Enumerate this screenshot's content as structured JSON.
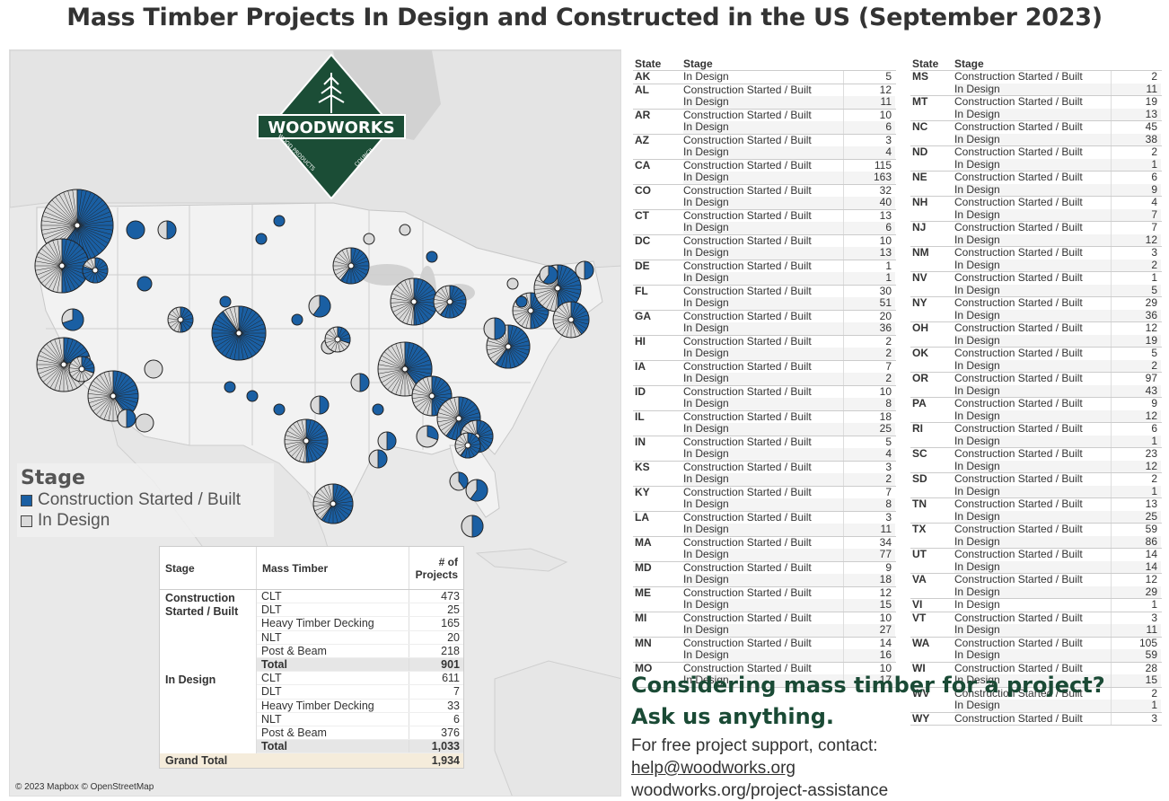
{
  "title": "Mass Timber Projects In Design and Constructed in the US (September 2023)",
  "colors": {
    "built": "#1a5fa3",
    "design": "#d9d9d9",
    "brand_green": "#1b4d36"
  },
  "logo": {
    "name": "WOODWORKS",
    "sub_left": "WOOD PRODUCTS",
    "sub_right": "COUNCIL"
  },
  "legend": {
    "title": "Stage",
    "items": [
      {
        "label": "Construction Started / Built",
        "color": "#1a5fa3"
      },
      {
        "label": "In Design",
        "color": "#d9d9d9"
      }
    ]
  },
  "attribution": "© 2023 Mapbox © OpenStreetMap",
  "summary": {
    "headers": {
      "stage": "Stage",
      "mass_timber": "Mass Timber",
      "count": "# of Projects"
    },
    "groups": [
      {
        "stage": "Construction Started / Built",
        "rows": [
          {
            "name": "CLT",
            "value": "473"
          },
          {
            "name": "DLT",
            "value": "25"
          },
          {
            "name": "Heavy Timber Decking",
            "value": "165"
          },
          {
            "name": "NLT",
            "value": "20"
          },
          {
            "name": "Post & Beam",
            "value": "218"
          },
          {
            "name": "Total",
            "value": "901",
            "total": true
          }
        ]
      },
      {
        "stage": "In Design",
        "rows": [
          {
            "name": "CLT",
            "value": "611"
          },
          {
            "name": "DLT",
            "value": "7"
          },
          {
            "name": "Heavy Timber Decking",
            "value": "33"
          },
          {
            "name": "NLT",
            "value": "6"
          },
          {
            "name": "Post & Beam",
            "value": "376"
          },
          {
            "name": "Total",
            "value": "1,033",
            "total": true
          }
        ]
      }
    ],
    "grand_total_label": "Grand Total",
    "grand_total_value": "1,934"
  },
  "state_table": {
    "headers": {
      "state": "State",
      "stage": "Stage"
    },
    "left": [
      {
        "state": "AK",
        "rows": [
          [
            "In Design",
            "5"
          ]
        ]
      },
      {
        "state": "AL",
        "rows": [
          [
            "Construction Started / Built",
            "12"
          ],
          [
            "In Design",
            "11"
          ]
        ]
      },
      {
        "state": "AR",
        "rows": [
          [
            "Construction Started / Built",
            "10"
          ],
          [
            "In Design",
            "6"
          ]
        ]
      },
      {
        "state": "AZ",
        "rows": [
          [
            "Construction Started / Built",
            "3"
          ],
          [
            "In Design",
            "4"
          ]
        ]
      },
      {
        "state": "CA",
        "rows": [
          [
            "Construction Started / Built",
            "115"
          ],
          [
            "In Design",
            "163"
          ]
        ]
      },
      {
        "state": "CO",
        "rows": [
          [
            "Construction Started / Built",
            "32"
          ],
          [
            "In Design",
            "40"
          ]
        ]
      },
      {
        "state": "CT",
        "rows": [
          [
            "Construction Started / Built",
            "13"
          ],
          [
            "In Design",
            "6"
          ]
        ]
      },
      {
        "state": "DC",
        "rows": [
          [
            "Construction Started / Built",
            "10"
          ],
          [
            "In Design",
            "13"
          ]
        ]
      },
      {
        "state": "DE",
        "rows": [
          [
            "Construction Started / Built",
            "1"
          ],
          [
            "In Design",
            "1"
          ]
        ]
      },
      {
        "state": "FL",
        "rows": [
          [
            "Construction Started / Built",
            "30"
          ],
          [
            "In Design",
            "51"
          ]
        ]
      },
      {
        "state": "GA",
        "rows": [
          [
            "Construction Started / Built",
            "20"
          ],
          [
            "In Design",
            "36"
          ]
        ]
      },
      {
        "state": "HI",
        "rows": [
          [
            "Construction Started / Built",
            "2"
          ],
          [
            "In Design",
            "2"
          ]
        ]
      },
      {
        "state": "IA",
        "rows": [
          [
            "Construction Started / Built",
            "7"
          ],
          [
            "In Design",
            "2"
          ]
        ]
      },
      {
        "state": "ID",
        "rows": [
          [
            "Construction Started / Built",
            "10"
          ],
          [
            "In Design",
            "8"
          ]
        ]
      },
      {
        "state": "IL",
        "rows": [
          [
            "Construction Started / Built",
            "18"
          ],
          [
            "In Design",
            "25"
          ]
        ]
      },
      {
        "state": "IN",
        "rows": [
          [
            "Construction Started / Built",
            "5"
          ],
          [
            "In Design",
            "4"
          ]
        ]
      },
      {
        "state": "KS",
        "rows": [
          [
            "Construction Started / Built",
            "3"
          ],
          [
            "In Design",
            "2"
          ]
        ]
      },
      {
        "state": "KY",
        "rows": [
          [
            "Construction Started / Built",
            "7"
          ],
          [
            "In Design",
            "8"
          ]
        ]
      },
      {
        "state": "LA",
        "rows": [
          [
            "Construction Started / Built",
            "3"
          ],
          [
            "In Design",
            "11"
          ]
        ]
      },
      {
        "state": "MA",
        "rows": [
          [
            "Construction Started / Built",
            "34"
          ],
          [
            "In Design",
            "77"
          ]
        ]
      },
      {
        "state": "MD",
        "rows": [
          [
            "Construction Started / Built",
            "9"
          ],
          [
            "In Design",
            "18"
          ]
        ]
      },
      {
        "state": "ME",
        "rows": [
          [
            "Construction Started / Built",
            "12"
          ],
          [
            "In Design",
            "15"
          ]
        ]
      },
      {
        "state": "MI",
        "rows": [
          [
            "Construction Started / Built",
            "10"
          ],
          [
            "In Design",
            "27"
          ]
        ]
      },
      {
        "state": "MN",
        "rows": [
          [
            "Construction Started / Built",
            "14"
          ],
          [
            "In Design",
            "16"
          ]
        ]
      },
      {
        "state": "MO",
        "rows": [
          [
            "Construction Started / Built",
            "10"
          ],
          [
            "In Design",
            "17"
          ]
        ]
      }
    ],
    "right": [
      {
        "state": "MS",
        "rows": [
          [
            "Construction Started / Built",
            "2"
          ],
          [
            "In Design",
            "11"
          ]
        ]
      },
      {
        "state": "MT",
        "rows": [
          [
            "Construction Started / Built",
            "19"
          ],
          [
            "In Design",
            "13"
          ]
        ]
      },
      {
        "state": "NC",
        "rows": [
          [
            "Construction Started / Built",
            "45"
          ],
          [
            "In Design",
            "38"
          ]
        ]
      },
      {
        "state": "ND",
        "rows": [
          [
            "Construction Started / Built",
            "2"
          ],
          [
            "In Design",
            "1"
          ]
        ]
      },
      {
        "state": "NE",
        "rows": [
          [
            "Construction Started / Built",
            "6"
          ],
          [
            "In Design",
            "9"
          ]
        ]
      },
      {
        "state": "NH",
        "rows": [
          [
            "Construction Started / Built",
            "4"
          ],
          [
            "In Design",
            "7"
          ]
        ]
      },
      {
        "state": "NJ",
        "rows": [
          [
            "Construction Started / Built",
            "7"
          ],
          [
            "In Design",
            "12"
          ]
        ]
      },
      {
        "state": "NM",
        "rows": [
          [
            "Construction Started / Built",
            "3"
          ],
          [
            "In Design",
            "2"
          ]
        ]
      },
      {
        "state": "NV",
        "rows": [
          [
            "Construction Started / Built",
            "1"
          ],
          [
            "In Design",
            "5"
          ]
        ]
      },
      {
        "state": "NY",
        "rows": [
          [
            "Construction Started / Built",
            "29"
          ],
          [
            "In Design",
            "36"
          ]
        ]
      },
      {
        "state": "OH",
        "rows": [
          [
            "Construction Started / Built",
            "12"
          ],
          [
            "In Design",
            "19"
          ]
        ]
      },
      {
        "state": "OK",
        "rows": [
          [
            "Construction Started / Built",
            "5"
          ],
          [
            "In Design",
            "2"
          ]
        ]
      },
      {
        "state": "OR",
        "rows": [
          [
            "Construction Started / Built",
            "97"
          ],
          [
            "In Design",
            "43"
          ]
        ]
      },
      {
        "state": "PA",
        "rows": [
          [
            "Construction Started / Built",
            "9"
          ],
          [
            "In Design",
            "12"
          ]
        ]
      },
      {
        "state": "RI",
        "rows": [
          [
            "Construction Started / Built",
            "6"
          ],
          [
            "In Design",
            "1"
          ]
        ]
      },
      {
        "state": "SC",
        "rows": [
          [
            "Construction Started / Built",
            "23"
          ],
          [
            "In Design",
            "12"
          ]
        ]
      },
      {
        "state": "SD",
        "rows": [
          [
            "Construction Started / Built",
            "2"
          ],
          [
            "In Design",
            "1"
          ]
        ]
      },
      {
        "state": "TN",
        "rows": [
          [
            "Construction Started / Built",
            "13"
          ],
          [
            "In Design",
            "25"
          ]
        ]
      },
      {
        "state": "TX",
        "rows": [
          [
            "Construction Started / Built",
            "59"
          ],
          [
            "In Design",
            "86"
          ]
        ]
      },
      {
        "state": "UT",
        "rows": [
          [
            "Construction Started / Built",
            "14"
          ],
          [
            "In Design",
            "14"
          ]
        ]
      },
      {
        "state": "VA",
        "rows": [
          [
            "Construction Started / Built",
            "12"
          ],
          [
            "In Design",
            "29"
          ]
        ]
      },
      {
        "state": "VI",
        "rows": [
          [
            "In Design",
            "1"
          ]
        ]
      },
      {
        "state": "VT",
        "rows": [
          [
            "Construction Started / Built",
            "3"
          ],
          [
            "In Design",
            "11"
          ]
        ]
      },
      {
        "state": "WA",
        "rows": [
          [
            "Construction Started / Built",
            "105"
          ],
          [
            "In Design",
            "59"
          ]
        ]
      },
      {
        "state": "WI",
        "rows": [
          [
            "Construction Started / Built",
            "28"
          ],
          [
            "In Design",
            "15"
          ]
        ]
      },
      {
        "state": "WV",
        "rows": [
          [
            "Construction Started / Built",
            "2"
          ],
          [
            "In Design",
            "1"
          ]
        ]
      },
      {
        "state": "WY",
        "rows": [
          [
            "Construction Started / Built",
            "3"
          ]
        ]
      }
    ]
  },
  "cta": {
    "heading1": "Considering mass timber for a project?",
    "heading2": "Ask us anything.",
    "text": "For free project support, contact:",
    "email": "help@woodworks.org",
    "url": "woodworks.org/project-assistance"
  }
}
